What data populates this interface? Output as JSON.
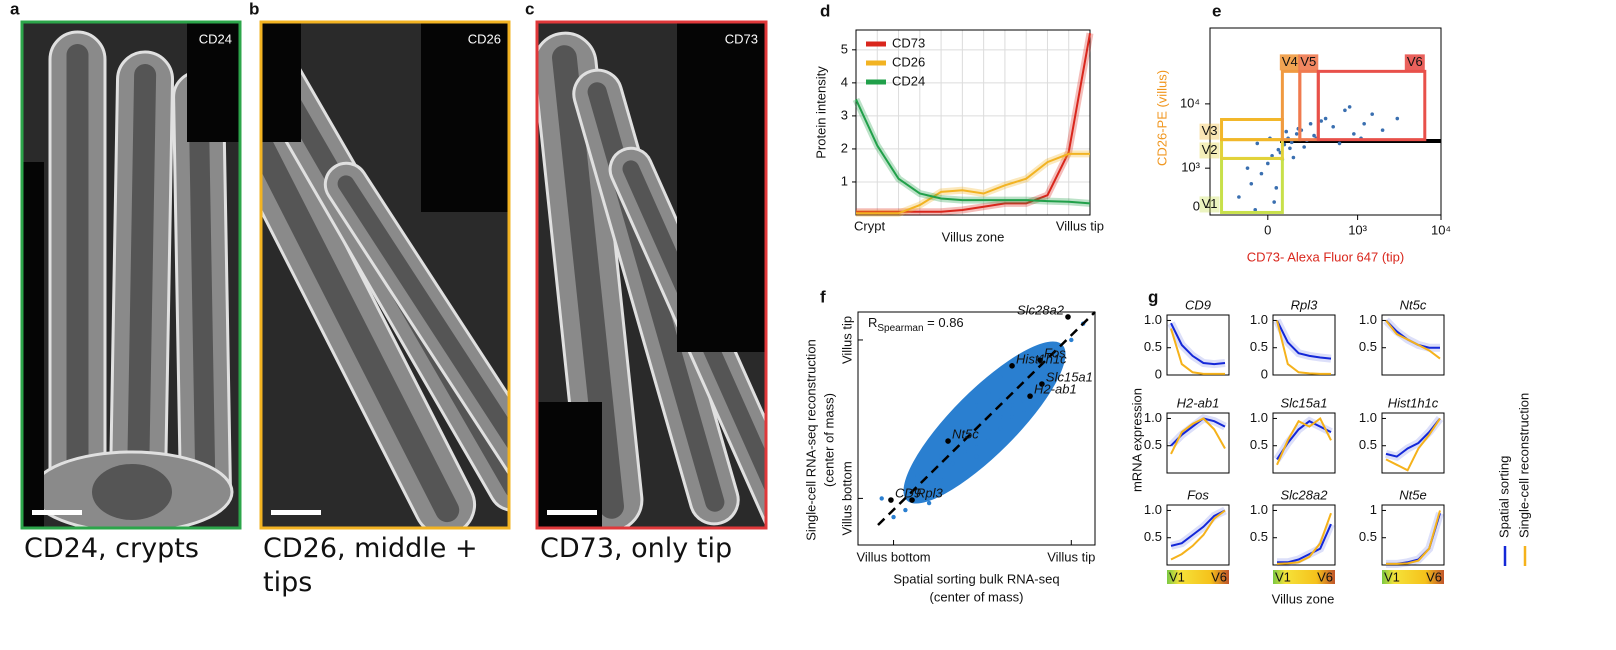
{
  "images": [
    {
      "panel": "a",
      "marker": "CD24",
      "caption": "CD24, crypts",
      "color": "#2ca54a"
    },
    {
      "panel": "b",
      "marker": "CD26",
      "caption": "CD26, middle + tips",
      "color": "#f2b322"
    },
    {
      "panel": "c",
      "marker": "CD73",
      "caption": "CD73, only tip",
      "color": "#e0383a"
    }
  ],
  "chart_data": [
    {
      "panel": "d",
      "type": "line",
      "ylabel": "Protein intensity",
      "xlabel": "Villus zone",
      "categories": [
        "Crypt",
        null,
        null,
        null,
        null,
        null,
        null,
        null,
        null,
        null,
        null,
        "Villus tip"
      ],
      "ylim": [
        0,
        5.6
      ],
      "yticks": [
        1,
        2,
        3,
        4,
        5
      ],
      "grid": true,
      "legend": "upper left",
      "series": [
        {
          "name": "CD73",
          "color": "#d9261c",
          "values": [
            0.1,
            0.1,
            0.1,
            0.1,
            0.1,
            0.15,
            0.25,
            0.35,
            0.35,
            0.6,
            1.9,
            5.5
          ]
        },
        {
          "name": "CD26",
          "color": "#f2b322",
          "values": [
            0.05,
            0.05,
            0.05,
            0.3,
            0.7,
            0.75,
            0.65,
            0.9,
            1.1,
            1.6,
            1.85,
            1.85
          ]
        },
        {
          "name": "CD24",
          "color": "#21a04a",
          "values": [
            3.5,
            2.1,
            1.1,
            0.65,
            0.5,
            0.45,
            0.45,
            0.45,
            0.45,
            0.42,
            0.4,
            0.35
          ]
        }
      ]
    },
    {
      "panel": "e",
      "type": "scatter",
      "xscale": "asinh",
      "yscale": "asinh",
      "xlabel": "CD73- Alexa Fluor 647 (tip)",
      "ylabel": "CD26-PE (villus)",
      "xlim": [
        -400,
        10000
      ],
      "ylim": [
        -150,
        140000
      ],
      "xticks": [
        0,
        {
          "value": 1000,
          "label": "10³"
        },
        {
          "value": 10000,
          "label": "10⁴"
        }
      ],
      "yticks": [
        0,
        {
          "value": 1000,
          "label": "10³"
        },
        {
          "value": 10000,
          "label": "10⁴"
        }
      ],
      "color": "#3a6fb0",
      "x": [
        -150,
        -80,
        -30,
        0,
        20,
        50,
        80,
        100,
        120,
        150,
        180,
        200,
        250,
        300,
        400,
        500,
        700,
        900,
        1200,
        1500,
        2000,
        3000,
        -100,
        -50,
        10,
        40,
        60,
        90,
        130,
        160,
        220,
        280,
        350,
        600,
        800,
        1100,
        -60,
        30,
        70,
        110
      ],
      "y": [
        200,
        500,
        800,
        1200,
        1600,
        2000,
        2400,
        3000,
        2600,
        3500,
        4000,
        2200,
        5000,
        3000,
        6000,
        4500,
        8000,
        3500,
        5000,
        7000,
        4000,
        6000,
        1000,
        2500,
        3000,
        400,
        1800,
        3800,
        1500,
        4200,
        2800,
        3300,
        5500,
        2500,
        9000,
        3000,
        -50,
        100,
        1400,
        2100
      ],
      "gates": [
        {
          "name": "V1",
          "color": "#c8e04a",
          "x": [
            -280,
            70
          ],
          "y": [
            -100,
            1450
          ]
        },
        {
          "name": "V2",
          "color": "#e2d23a",
          "x": [
            -280,
            70
          ],
          "y": [
            1450,
            2860
          ]
        },
        {
          "name": "V3",
          "color": "#f2b72a",
          "x": [
            -280,
            70
          ],
          "y": [
            2860,
            5800
          ]
        },
        {
          "name": "V4",
          "color": "#f09a40",
          "x": [
            70,
            170
          ],
          "y": [
            2860,
            31000
          ]
        },
        {
          "name": "V5",
          "color": "#f07a50",
          "x": [
            170,
            320
          ],
          "y": [
            2860,
            31000
          ]
        },
        {
          "name": "V6",
          "color": "#e8504a",
          "x": [
            320,
            6400
          ],
          "y": [
            2860,
            31000
          ]
        }
      ]
    },
    {
      "panel": "f",
      "type": "scatter",
      "xlabel": [
        "Spatial sorting bulk RNA-seq",
        "(center of mass)"
      ],
      "ylabel": [
        "Single-cell RNA-seq reconstruction",
        "(center of mass)"
      ],
      "xlim": [
        0,
        1
      ],
      "ylim": [
        0,
        1
      ],
      "xticks": [
        {
          "value": 0.15,
          "label": "Villus bottom"
        },
        {
          "value": 0.9,
          "label": "Villus tip"
        }
      ],
      "yticks": [
        {
          "value": 0.2,
          "label": "Villus bottom"
        },
        {
          "value": 0.88,
          "label": "Villus tip"
        }
      ],
      "annotation": {
        "symbol": "R",
        "subscript": "Spearman",
        "rest": " = 0.86"
      },
      "color": "#2a7fd0",
      "x": [
        0.2,
        0.25,
        0.3,
        0.35,
        0.4,
        0.45,
        0.5,
        0.55,
        0.6,
        0.65,
        0.7,
        0.75,
        0.8,
        0.85,
        0.9,
        0.3,
        0.4,
        0.5,
        0.6,
        0.7,
        0.45,
        0.55,
        0.65,
        0.35,
        0.5,
        0.6,
        0.7,
        0.8,
        0.25,
        0.15,
        0.1,
        0.55,
        0.45,
        0.65,
        0.75,
        0.4,
        0.5,
        0.3,
        0.6,
        0.95
      ],
      "y": [
        0.15,
        0.2,
        0.3,
        0.38,
        0.45,
        0.4,
        0.5,
        0.55,
        0.62,
        0.6,
        0.68,
        0.72,
        0.75,
        0.82,
        0.88,
        0.22,
        0.35,
        0.42,
        0.55,
        0.62,
        0.5,
        0.45,
        0.7,
        0.28,
        0.6,
        0.5,
        0.58,
        0.7,
        0.3,
        0.12,
        0.2,
        0.65,
        0.33,
        0.55,
        0.8,
        0.5,
        0.38,
        0.18,
        0.72,
        0.95
      ],
      "genes": [
        {
          "name": "Slc28a2",
          "x": 0.886,
          "y": 0.979
        },
        {
          "name": "Fos",
          "x": 0.768,
          "y": 0.794
        },
        {
          "name": "Hist1h1c",
          "x": 0.65,
          "y": 0.769
        },
        {
          "name": "Slc15a1",
          "x": 0.776,
          "y": 0.691
        },
        {
          "name": "H2-ab1",
          "x": 0.726,
          "y": 0.639
        },
        {
          "name": "Nt5c",
          "x": 0.38,
          "y": 0.446
        },
        {
          "name": "CD9",
          "x": 0.139,
          "y": 0.193
        },
        {
          "name": "Rpl3",
          "x": 0.228,
          "y": 0.193
        }
      ]
    },
    {
      "panel": "g",
      "type": "line-grid",
      "xlabel": "Villus zone",
      "ylabel": "mRNA expression",
      "zone_labels": [
        "V1",
        "V6"
      ],
      "legend": [
        {
          "name": "Spatial sorting",
          "color": "#1428d8"
        },
        {
          "name": "Single-cell reconstruction",
          "color": "#f5b21b"
        }
      ],
      "charts": [
        {
          "title": "CD9",
          "ylim": [
            0,
            1.1
          ],
          "yticks": [
            0,
            0.5,
            {
              "value": 1,
              "label": "1.0"
            }
          ],
          "series": [
            {
              "values": [
                0.95,
                0.55,
                0.35,
                0.22,
                0.2,
                0.22
              ]
            },
            {
              "values": [
                0.85,
                0.2,
                0.05,
                0.02,
                0.02,
                0.02
              ]
            }
          ]
        },
        {
          "title": "Rpl3",
          "ylim": [
            0,
            1.1
          ],
          "yticks": [
            0,
            0.5,
            {
              "value": 1,
              "label": "1.0"
            }
          ],
          "series": [
            {
              "values": [
                1.0,
                0.6,
                0.4,
                0.35,
                0.32,
                0.3
              ]
            },
            {
              "values": [
                1.0,
                0.2,
                0.05,
                0.03,
                0.02,
                0.02
              ]
            }
          ]
        },
        {
          "title": "Nt5c",
          "ylim": [
            0,
            1.1
          ],
          "yticks": [
            0.5,
            {
              "value": 1,
              "label": "1.0"
            }
          ],
          "series": [
            {
              "values": [
                1.0,
                0.8,
                0.65,
                0.55,
                0.5,
                0.5
              ]
            },
            {
              "values": [
                1.0,
                0.75,
                0.65,
                0.55,
                0.45,
                0.3
              ]
            }
          ]
        },
        {
          "title": "H2-ab1",
          "ylim": [
            0,
            1.1
          ],
          "yticks": [
            0.5,
            {
              "value": 1,
              "label": "1.0"
            }
          ],
          "series": [
            {
              "values": [
                0.5,
                0.7,
                0.85,
                1.0,
                0.95,
                0.85
              ]
            },
            {
              "values": [
                0.35,
                0.75,
                0.9,
                1.0,
                0.8,
                0.45
              ]
            }
          ]
        },
        {
          "title": "Slc15a1",
          "ylim": [
            0,
            1.1
          ],
          "yticks": [
            0.5,
            {
              "value": 1,
              "label": "1.0"
            }
          ],
          "series": [
            {
              "values": [
                0.25,
                0.55,
                0.8,
                0.95,
                0.85,
                0.75
              ]
            },
            {
              "values": [
                0.15,
                0.6,
                0.95,
                0.85,
                1.0,
                0.6
              ]
            }
          ]
        },
        {
          "title": "Hist1h1c",
          "ylim": [
            0,
            1.1
          ],
          "yticks": [
            0.5,
            {
              "value": 1,
              "label": "1.0"
            }
          ],
          "series": [
            {
              "values": [
                0.35,
                0.3,
                0.45,
                0.55,
                0.75,
                1.0
              ]
            },
            {
              "values": [
                0.25,
                0.15,
                0.05,
                0.45,
                0.7,
                1.0
              ]
            }
          ]
        },
        {
          "title": "Fos",
          "ylim": [
            0,
            1.1
          ],
          "yticks": [
            0.5,
            {
              "value": 1,
              "label": "1.0"
            }
          ],
          "series": [
            {
              "values": [
                0.35,
                0.4,
                0.55,
                0.7,
                0.9,
                1.0
              ]
            },
            {
              "values": [
                0.1,
                0.2,
                0.35,
                0.55,
                0.85,
                1.0
              ]
            }
          ]
        },
        {
          "title": "Slc28a2",
          "ylim": [
            0,
            1.1
          ],
          "yticks": [
            0.5,
            {
              "value": 1,
              "label": "1.0"
            }
          ],
          "series": [
            {
              "values": [
                0.05,
                0.05,
                0.1,
                0.2,
                0.3,
                0.75
              ]
            },
            {
              "values": [
                0.02,
                0.03,
                0.05,
                0.15,
                0.4,
                0.95
              ]
            }
          ]
        },
        {
          "title": "Nt5e",
          "ylim": [
            0,
            1.1
          ],
          "yticks": [
            0.5,
            1
          ],
          "series": [
            {
              "values": [
                0.02,
                0.02,
                0.05,
                0.1,
                0.3,
                0.95
              ]
            },
            {
              "values": [
                0.02,
                0.02,
                0.03,
                0.08,
                0.3,
                1.0
              ]
            }
          ]
        }
      ]
    }
  ]
}
